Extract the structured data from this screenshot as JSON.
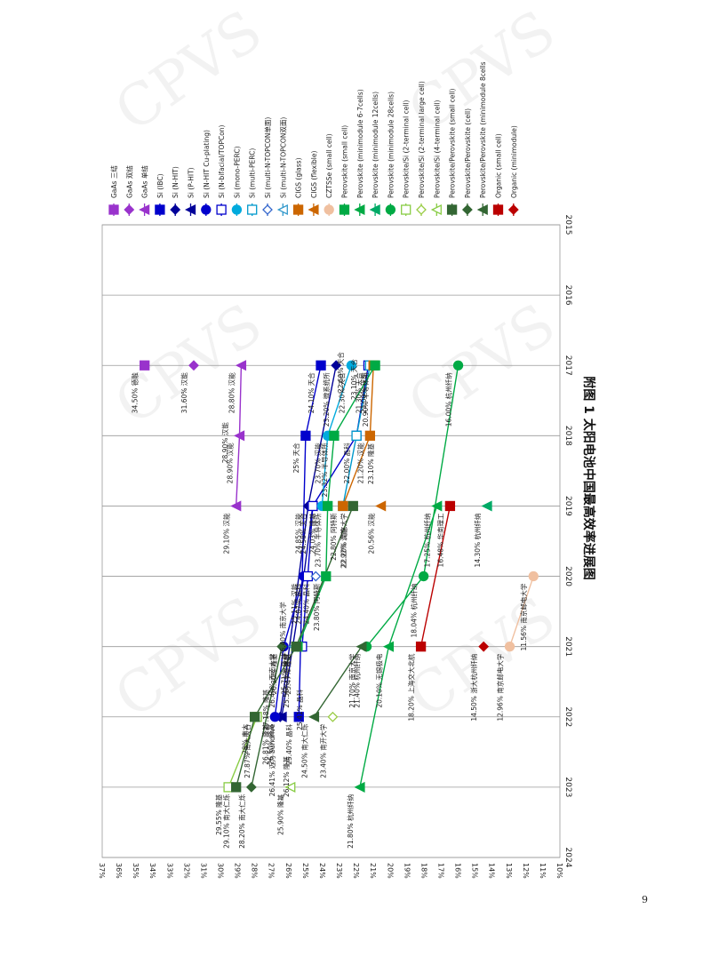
{
  "page_number": "9",
  "watermark": "CPVS",
  "chart_data": {
    "type": "line",
    "title": "附图 1 太阳电池中国最高效率进展图",
    "xlabel": "",
    "ylabel": "",
    "x_ticks": [
      "2015",
      "2016",
      "2017",
      "2018",
      "2019",
      "2020",
      "2021",
      "2022",
      "2023",
      "2024"
    ],
    "y_ticks": [
      "10%",
      "11%",
      "12%",
      "13%",
      "14%",
      "15%",
      "16%",
      "17%",
      "18%",
      "19%",
      "20%",
      "21%",
      "22%",
      "23%",
      "24%",
      "25%",
      "26%",
      "27%",
      "28%",
      "29%",
      "30%",
      "31%",
      "32%",
      "33%",
      "34%",
      "35%",
      "36%",
      "37%"
    ],
    "xlim": [
      2015,
      2024
    ],
    "ylim": [
      10,
      37
    ],
    "grid": "vertical",
    "orientation": "rotated-90",
    "legend_position": "right",
    "series": [
      {
        "name": "GaAs 三结",
        "color": "#9933cc",
        "marker": "square-filled",
        "points": [
          [
            2017,
            34.5,
            "34.50% 德融"
          ]
        ]
      },
      {
        "name": "GaAs 双结",
        "color": "#9933cc",
        "marker": "diamond-filled",
        "points": [
          [
            2017,
            31.6,
            "31.60% 汉能"
          ]
        ]
      },
      {
        "name": "GaAs 单结",
        "color": "#9933cc",
        "marker": "tri",
        "points": [
          [
            2017,
            28.8,
            "28.80% 汉能"
          ],
          [
            2018,
            28.9,
            "28.90% 汉能"
          ],
          [
            2019,
            29.1,
            "29.10% 汉能"
          ]
        ]
      },
      {
        "name": "Si (IBC)",
        "color": "#0000cc",
        "marker": "square-filled",
        "points": [
          [
            2017,
            24.1,
            "24.10% 天合"
          ],
          [
            2018,
            25.0,
            "25% 天合"
          ],
          [
            2022,
            25.4,
            "25.40% 晶科"
          ]
        ]
      },
      {
        "name": "Si (N-HIT)",
        "color": "#000099",
        "marker": "diamond-filled",
        "points": [
          [
            2017,
            23.2,
            "23.20% 微系统所"
          ],
          [
            2019,
            24.85,
            "24.85% 汉能"
          ],
          [
            2022,
            26.5,
            "26.50% 隆基"
          ]
        ]
      },
      {
        "name": "Si (P-HIT)",
        "color": "#000099",
        "marker": "tri",
        "points": [
          [
            2019,
            24.58,
            "24.58% 天合"
          ],
          [
            2020,
            25.11,
            "25.11% 汉能"
          ],
          [
            2022,
            26.41,
            "26.41% 迈为 Sundrive"
          ]
        ]
      },
      {
        "name": "Si (N-HIT Cu-plating)",
        "color": "#0000cc",
        "marker": "circle-filled",
        "points": [
          [
            2020,
            25.11,
            ""
          ],
          [
            2021,
            26.3,
            "26.30% 隆基"
          ],
          [
            2022,
            26.81,
            "26.81% 隆基"
          ]
        ]
      },
      {
        "name": "Si (N-bifacial/TOPCon)",
        "color": "#0000cc",
        "marker": "square-open",
        "points": [
          [
            2017,
            21.3,
            "21.30% 天合"
          ],
          [
            2018,
            22.0,
            "22.00% 晶科"
          ],
          [
            2019,
            24.58,
            ""
          ],
          [
            2020,
            24.87,
            "24.87% 晶科"
          ],
          [
            2021,
            25.21,
            ""
          ]
        ]
      },
      {
        "name": "Si (mono-PERC)",
        "color": "#00aadd",
        "marker": "circle-filled",
        "points": [
          [
            2017,
            22.3,
            "22.30% 天合"
          ],
          [
            2018,
            23.7,
            "23.70% 汉能"
          ],
          [
            2019,
            24.03,
            "24.03% 隆基"
          ]
        ]
      },
      {
        "name": "Si (multi-PERC)",
        "color": "#0099cc",
        "marker": "square-open",
        "points": [
          [
            2017,
            21.2,
            ""
          ],
          [
            2018,
            22.0,
            ""
          ],
          [
            2019,
            22.8,
            ""
          ]
        ]
      },
      {
        "name": "Si (multi-N-TOPCON单面)",
        "color": "#3366cc",
        "marker": "diamond-open",
        "points": [
          [
            2020,
            24.4,
            "24.40% 晶科"
          ]
        ]
      },
      {
        "name": "Si (multi-N-TOPCON双面)",
        "color": "#3399cc",
        "marker": "tri-open",
        "points": [
          [
            2021,
            25.71,
            "25.71% 隆基"
          ]
        ]
      },
      {
        "name": "CIGS (glass)",
        "color": "#cc6600",
        "marker": "square-filled",
        "points": [
          [
            2017,
            21.0,
            "21.00% 汉能"
          ],
          [
            2018,
            21.2,
            "21.20% 汉能"
          ],
          [
            2019,
            22.8,
            "22.80% 阿特斯"
          ]
        ]
      },
      {
        "name": "CIGS (flexible)",
        "color": "#cc6600",
        "marker": "tri",
        "points": [
          [
            2019,
            20.56,
            "20.56% 汉能"
          ]
        ]
      },
      {
        "name": "CZTSSe (small cell)",
        "color": "#f0c0a0",
        "marker": "circle-filled",
        "points": [
          [
            2020,
            11.56,
            "11.56% 南京邮电大学"
          ],
          [
            2021,
            12.96,
            "12.96% 南京邮电大学"
          ]
        ]
      },
      {
        "name": "Perovskite (small cell)",
        "color": "#00aa44",
        "marker": "square-filled",
        "points": [
          [
            2017,
            20.9,
            "20.90% 半导体所"
          ],
          [
            2018,
            23.32,
            "23.32% 半导体所"
          ],
          [
            2019,
            23.7,
            "23.70% 半导体所"
          ],
          [
            2020,
            23.8,
            "23.80% 阿特斯"
          ],
          [
            2021,
            25.47,
            "25.47% 隆基"
          ]
        ]
      },
      {
        "name": "Perovskite (minimodule 6-7cells)",
        "color": "#00aa44",
        "marker": "tri",
        "points": [
          [
            2019,
            17.25,
            "17.25% 杭州纤纳"
          ],
          [
            2021,
            20.1,
            "20.10% 无锡极电"
          ],
          [
            2023,
            21.8,
            "21.80% 杭州纤纳"
          ]
        ]
      },
      {
        "name": "Perovskite (minimodule 12cells)",
        "color": "#00aa66",
        "marker": "tri",
        "points": [
          [
            2019,
            14.3,
            "14.30% 杭州纤纳"
          ]
        ]
      },
      {
        "name": "Perovskite (minimodule 28cells)",
        "color": "#00aa44",
        "marker": "circle-filled",
        "points": [
          [
            2017,
            16.0,
            "16.00% 杭州纤纳"
          ],
          [
            2020,
            18.04,
            "18.04% 杭州纤纳"
          ],
          [
            2021,
            21.4,
            "21.40% 杭州纤纳"
          ]
        ]
      },
      {
        "name": "Perovskite/Si (2-terminal cell)",
        "color": "#88cc44",
        "marker": "square-open",
        "points": [
          [
            2022,
            27.87,
            "27.87% 南大天合"
          ],
          [
            2023,
            29.55,
            "29.55% 隆基"
          ]
        ]
      },
      {
        "name": "Perovskite/Si (2-terminal large cell)",
        "color": "#99cc44",
        "marker": "diamond-open",
        "points": [
          [
            2022,
            23.4,
            "23.40% 南开大学"
          ]
        ]
      },
      {
        "name": "Perovskite/Si (4-terminal cell)",
        "color": "#88cc44",
        "marker": "tri-open",
        "points": [
          [
            2023,
            25.9,
            "25.90% 隆基"
          ]
        ]
      },
      {
        "name": "Perovskite/Perovskite (small cell)",
        "color": "#336633",
        "marker": "square-filled",
        "points": [
          [
            2019,
            22.2,
            "22.20% 南京大学"
          ],
          [
            2021,
            25.56,
            "25.56% 半导体所"
          ],
          [
            2022,
            28.0,
            "28% 南大"
          ],
          [
            2023,
            29.1,
            "29.10% 南大仁烁"
          ]
        ]
      },
      {
        "name": "Perovskite/Perovskite (cell)",
        "color": "#336633",
        "marker": "diamond-filled",
        "points": [
          [
            2021,
            26.4,
            "26.40% 西南大学"
          ],
          [
            2023,
            28.2,
            "28.20% 南大仁烁"
          ]
        ]
      },
      {
        "name": "Perovskite/Perovskite (minimodule 8cells",
        "color": "#336633",
        "marker": "tri",
        "points": [
          [
            2021,
            21.7,
            "21.70% 南京大学"
          ],
          [
            2022,
            24.5,
            "24.50% 南大仁烁"
          ]
        ]
      },
      {
        "name": "Organic (small cell)",
        "color": "#bb0000",
        "marker": "square-filled",
        "points": [
          [
            2019,
            16.48,
            "16.48% 华南理工"
          ],
          [
            2021,
            18.2,
            "18.20% 上海交大北航"
          ]
        ]
      },
      {
        "name": "Organic (minimodule)",
        "color": "#bb0000",
        "marker": "diamond-filled",
        "points": [
          [
            2021,
            14.5,
            "14.50% 浙大杭州纤纳"
          ]
        ]
      }
    ],
    "extra_labels": [
      "22.92% 汉能",
      "25.41% 晶科",
      "26.12% 隆基",
      "26.40% 南京大学",
      "27.18% 隆基",
      "22.60% 天合",
      "23.10% 天合",
      "23.10% 隆基",
      "28.90% 汉能"
    ]
  }
}
